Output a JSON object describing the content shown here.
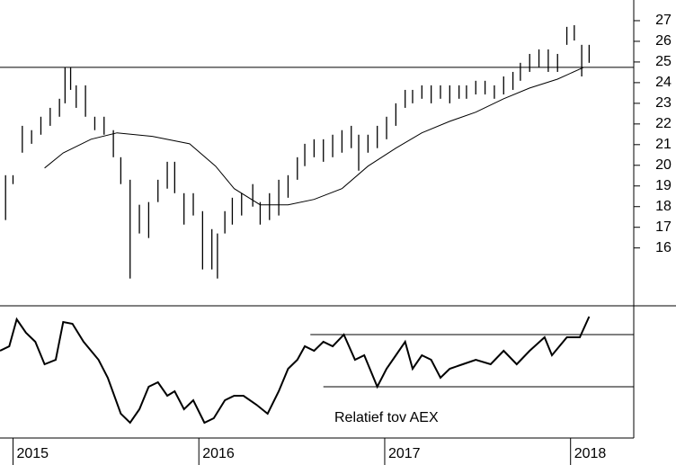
{
  "chart_data": [
    {
      "type": "hilo",
      "color": "#000000",
      "x": [
        2014.96,
        2015.0,
        2015.05,
        2015.1,
        2015.15,
        2015.2,
        2015.25,
        2015.28,
        2015.31,
        2015.34,
        2015.39,
        2015.44,
        2015.49,
        2015.54,
        2015.58,
        2015.63,
        2015.68,
        2015.73,
        2015.78,
        2015.83,
        2015.87,
        2015.92,
        2015.97,
        2016.02,
        2016.07,
        2016.1,
        2016.14,
        2016.18,
        2016.23,
        2016.29,
        2016.33,
        2016.38,
        2016.43,
        2016.48,
        2016.53,
        2016.57,
        2016.62,
        2016.67,
        2016.72,
        2016.77,
        2016.82,
        2016.86,
        2016.91,
        2016.96,
        2017.01,
        2017.06,
        2017.11,
        2017.15,
        2017.2,
        2017.25,
        2017.3,
        2017.35,
        2017.4,
        2017.44,
        2017.49,
        2017.54,
        2017.59,
        2017.64,
        2017.69,
        2017.73,
        2017.78,
        2017.83,
        2017.88,
        2017.93,
        2017.98,
        2018.02,
        2018.06,
        2018.1
      ],
      "low": [
        17.35,
        19.09,
        20.61,
        21.04,
        21.48,
        21.91,
        22.35,
        23.0,
        23.65,
        22.78,
        22.35,
        21.7,
        21.48,
        20.39,
        19.09,
        14.52,
        16.7,
        16.48,
        18.22,
        18.87,
        18.65,
        17.13,
        17.57,
        14.96,
        14.96,
        14.52,
        16.7,
        17.13,
        17.57,
        18.0,
        17.13,
        17.35,
        17.57,
        18.43,
        19.3,
        19.96,
        20.39,
        20.17,
        20.39,
        20.61,
        20.83,
        19.74,
        20.61,
        20.83,
        21.26,
        21.91,
        22.78,
        23.0,
        23.22,
        23.0,
        23.22,
        23.0,
        23.22,
        23.22,
        23.43,
        23.43,
        23.22,
        23.43,
        23.65,
        24.09,
        24.52,
        24.74,
        24.52,
        24.52,
        25.83,
        26.04,
        24.3,
        24.96
      ],
      "high": [
        19.52,
        19.52,
        21.91,
        21.7,
        22.35,
        22.78,
        23.22,
        24.74,
        24.74,
        23.87,
        23.87,
        22.35,
        22.35,
        21.7,
        20.39,
        19.3,
        18.09,
        18.22,
        19.3,
        20.17,
        20.17,
        18.65,
        18.65,
        17.78,
        16.91,
        16.7,
        17.78,
        18.43,
        18.65,
        19.09,
        18.22,
        18.65,
        19.3,
        19.52,
        20.39,
        21.04,
        21.26,
        21.26,
        21.48,
        21.7,
        21.91,
        21.48,
        21.48,
        21.91,
        22.35,
        23.0,
        23.65,
        23.65,
        23.87,
        23.87,
        23.87,
        23.87,
        23.87,
        23.87,
        24.09,
        24.09,
        23.87,
        24.3,
        24.52,
        24.96,
        25.39,
        25.61,
        25.61,
        25.39,
        26.7,
        26.78,
        25.83,
        25.83
      ],
      "moving_average": {
        "x": [
          2015.17,
          2015.27,
          2015.42,
          2015.56,
          2015.75,
          2015.95,
          2016.09,
          2016.19,
          2016.33,
          2016.48,
          2016.62,
          2016.77,
          2016.91,
          2017.06,
          2017.2,
          2017.35,
          2017.49,
          2017.64,
          2017.78,
          2017.93,
          2018.07
        ],
        "values": [
          19.87,
          20.6,
          21.26,
          21.57,
          21.4,
          21.04,
          19.96,
          18.87,
          18.09,
          18.09,
          18.35,
          18.87,
          19.96,
          20.83,
          21.57,
          22.13,
          22.57,
          23.22,
          23.74,
          24.17,
          24.74
        ]
      },
      "hline": 24.74,
      "xlim": [
        2014.93,
        2018.34
      ],
      "xticks": [
        2015,
        2016,
        2017,
        2018
      ],
      "ylim": [
        13.2,
        28
      ],
      "yticks": [
        16,
        17,
        18,
        19,
        20,
        21,
        22,
        23,
        24,
        25,
        26,
        27
      ]
    },
    {
      "type": "line",
      "color": "#000000",
      "annotation": "Relatief tov AEX",
      "x": [
        2014.93,
        2014.98,
        2015.02,
        2015.07,
        2015.12,
        2015.17,
        2015.23,
        2015.27,
        2015.32,
        2015.38,
        2015.46,
        2015.51,
        2015.58,
        2015.63,
        2015.68,
        2015.73,
        2015.78,
        2015.83,
        2015.87,
        2015.92,
        2015.97,
        2016.03,
        2016.08,
        2016.14,
        2016.19,
        2016.24,
        2016.31,
        2016.37,
        2016.43,
        2016.48,
        2016.53,
        2016.57,
        2016.62,
        2016.67,
        2016.72,
        2016.78,
        2016.84,
        2016.89,
        2016.96,
        2017.01,
        2017.06,
        2017.11,
        2017.15,
        2017.2,
        2017.25,
        2017.3,
        2017.35,
        2017.42,
        2017.49,
        2017.57,
        2017.64,
        2017.71,
        2017.78,
        2017.86,
        2017.9,
        2017.98,
        2018.05,
        2018.1
      ],
      "values": [
        97,
        102,
        132,
        117,
        107,
        82,
        87,
        129,
        127,
        107,
        87,
        67,
        27,
        17,
        32,
        57,
        62,
        47,
        52,
        32,
        42,
        17,
        22,
        42,
        47,
        47,
        37,
        27,
        52,
        77,
        87,
        102,
        97,
        107,
        102,
        115,
        87,
        92,
        57,
        77,
        92,
        107,
        77,
        92,
        87,
        67,
        77,
        82,
        87,
        82,
        97,
        82,
        97,
        112,
        92,
        112,
        112,
        135
      ],
      "hlines": [
        {
          "value": 115,
          "from": 2016.6
        },
        {
          "value": 57,
          "from": 2016.67
        }
      ],
      "xlim": [
        2014.93,
        2018.34
      ],
      "ylim": [
        0,
        147
      ]
    }
  ]
}
